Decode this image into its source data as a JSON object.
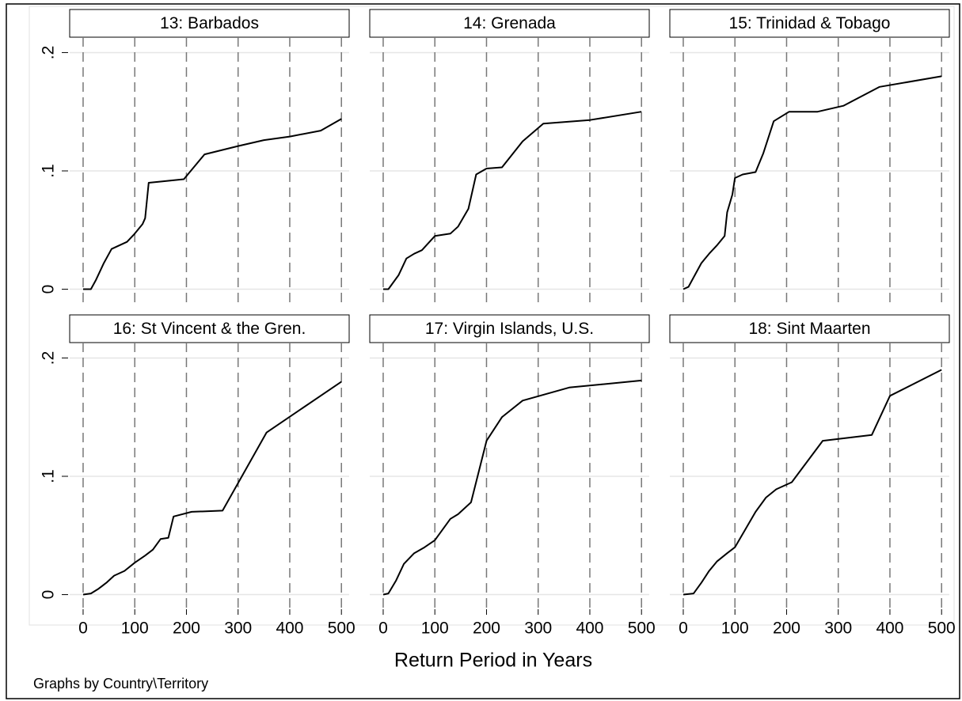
{
  "chart_data": [
    {
      "type": "line",
      "title": "13: Barbados",
      "color": "#000000",
      "grid": true,
      "x": [
        0,
        15,
        25,
        40,
        55,
        70,
        85,
        100,
        115,
        120,
        127,
        150,
        195,
        235,
        300,
        350,
        400,
        460,
        500
      ],
      "values": [
        0,
        0,
        0.008,
        0.022,
        0.034,
        0.037,
        0.04,
        0.047,
        0.055,
        0.06,
        0.09,
        0.091,
        0.093,
        0.114,
        0.121,
        0.126,
        0.129,
        0.134,
        0.144
      ],
      "xlim": [
        -26,
        515
      ],
      "ylim": [
        -0.011,
        0.213
      ],
      "xticks": [
        0,
        100,
        200,
        300,
        400,
        500
      ],
      "yticks": [
        0,
        {
          "value": 0.1,
          "label": ".1"
        },
        {
          "value": 0.2,
          "label": ".2"
        }
      ]
    },
    {
      "type": "line",
      "title": "14: Grenada",
      "color": "#000000",
      "grid": true,
      "x": [
        0,
        10,
        30,
        45,
        60,
        75,
        100,
        130,
        145,
        165,
        180,
        200,
        230,
        270,
        310,
        400,
        500
      ],
      "values": [
        0,
        0,
        0.012,
        0.026,
        0.03,
        0.033,
        0.045,
        0.047,
        0.053,
        0.068,
        0.097,
        0.102,
        0.103,
        0.125,
        0.14,
        0.143,
        0.15
      ],
      "xlim": [
        -26,
        515
      ],
      "ylim": [
        -0.011,
        0.213
      ],
      "xticks": [
        0,
        100,
        200,
        300,
        400,
        500
      ],
      "yticks": [
        0,
        {
          "value": 0.1,
          "label": ".1"
        },
        {
          "value": 0.2,
          "label": ".2"
        }
      ]
    },
    {
      "type": "line",
      "title": "15: Trinidad & Tobago",
      "color": "#000000",
      "grid": true,
      "x": [
        0,
        10,
        20,
        35,
        50,
        65,
        80,
        85,
        95,
        100,
        115,
        140,
        155,
        175,
        205,
        260,
        310,
        380,
        500
      ],
      "values": [
        0,
        0.002,
        0.01,
        0.022,
        0.03,
        0.037,
        0.045,
        0.065,
        0.08,
        0.094,
        0.097,
        0.099,
        0.115,
        0.142,
        0.15,
        0.15,
        0.155,
        0.171,
        0.18
      ],
      "xlim": [
        -26,
        515
      ],
      "ylim": [
        -0.011,
        0.213
      ],
      "xticks": [
        0,
        100,
        200,
        300,
        400,
        500
      ],
      "yticks": [
        0,
        {
          "value": 0.1,
          "label": ".1"
        },
        {
          "value": 0.2,
          "label": ".2"
        }
      ]
    },
    {
      "type": "line",
      "title": "16: St Vincent & the Gren.",
      "color": "#000000",
      "grid": true,
      "x": [
        0,
        15,
        30,
        45,
        60,
        80,
        100,
        120,
        135,
        150,
        165,
        175,
        210,
        270,
        355,
        500
      ],
      "values": [
        0,
        0.001,
        0.005,
        0.01,
        0.016,
        0.02,
        0.027,
        0.033,
        0.038,
        0.047,
        0.048,
        0.066,
        0.07,
        0.071,
        0.137,
        0.18
      ],
      "xlim": [
        -26,
        515
      ],
      "ylim": [
        -0.011,
        0.213
      ],
      "xticks": [
        0,
        100,
        200,
        300,
        400,
        500
      ],
      "yticks": [
        0,
        {
          "value": 0.1,
          "label": ".1"
        },
        {
          "value": 0.2,
          "label": ".2"
        }
      ]
    },
    {
      "type": "line",
      "title": "17: Virgin Islands, U.S.",
      "color": "#000000",
      "grid": true,
      "x": [
        0,
        10,
        25,
        40,
        60,
        80,
        100,
        115,
        130,
        145,
        170,
        200,
        230,
        270,
        360,
        500
      ],
      "values": [
        0,
        0.001,
        0.012,
        0.026,
        0.035,
        0.04,
        0.046,
        0.055,
        0.064,
        0.068,
        0.078,
        0.13,
        0.15,
        0.164,
        0.175,
        0.181
      ],
      "xlim": [
        -26,
        515
      ],
      "ylim": [
        -0.011,
        0.213
      ],
      "xticks": [
        0,
        100,
        200,
        300,
        400,
        500
      ],
      "yticks": [
        0,
        {
          "value": 0.1,
          "label": ".1"
        },
        {
          "value": 0.2,
          "label": ".2"
        }
      ]
    },
    {
      "type": "line",
      "title": "18: Sint Maarten",
      "color": "#000000",
      "grid": true,
      "x": [
        0,
        20,
        35,
        50,
        65,
        85,
        100,
        120,
        140,
        160,
        180,
        210,
        270,
        365,
        400,
        500
      ],
      "values": [
        0,
        0.001,
        0.01,
        0.02,
        0.028,
        0.035,
        0.04,
        0.055,
        0.07,
        0.082,
        0.089,
        0.095,
        0.13,
        0.135,
        0.168,
        0.19
      ],
      "xlim": [
        -26,
        515
      ],
      "ylim": [
        -0.011,
        0.213
      ],
      "xticks": [
        0,
        100,
        200,
        300,
        400,
        500
      ],
      "yticks": [
        0,
        {
          "value": 0.1,
          "label": ".1"
        },
        {
          "value": 0.2,
          "label": ".2"
        }
      ]
    }
  ],
  "xlabel": "Return Period in Years",
  "note": "Graphs by Country\\Territory"
}
